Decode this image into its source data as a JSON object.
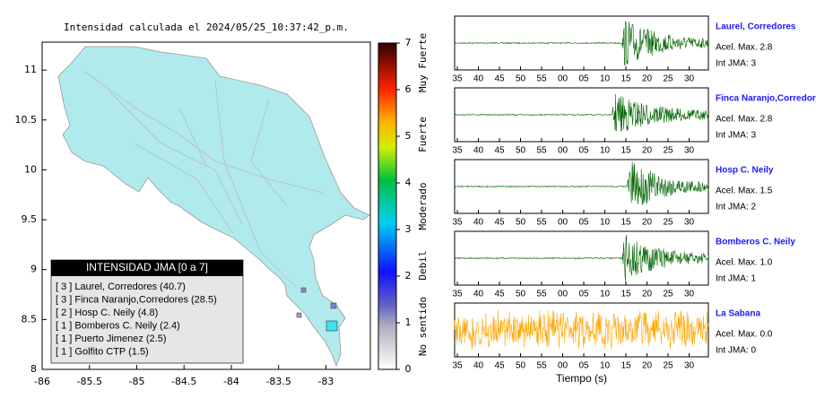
{
  "title": "Intensidad calculada el 2024/05/25_10:37:42_p.m.",
  "map": {
    "xlim": [
      -86,
      -82.53
    ],
    "ylim": [
      8,
      11.28
    ],
    "xticks": [
      -86,
      -85.5,
      -85,
      -84.5,
      -84,
      -83.5,
      -83
    ],
    "yticks": [
      8,
      8.5,
      9,
      9.5,
      10,
      10.5,
      11
    ]
  },
  "colorbar": {
    "lim": [
      0,
      7
    ],
    "ticks": [
      0,
      1,
      2,
      3,
      4,
      5,
      6,
      7
    ],
    "labels": [
      "No sentido",
      "Debil",
      "Moderado",
      "Fuerte",
      "Muy Fuerte"
    ]
  },
  "legend": {
    "title": "INTENSIDAD JMA [0 a 7]",
    "rows": [
      "[ 3 ]  Laurel, Corredores (40.7)",
      "[ 3 ]  Finca Naranjo,Corredores (28.5)",
      "[ 2 ]  Hosp C. Neily (4.8)",
      "[ 1 ]  Bomberos C. Neily (2.4)",
      "[ 1 ]  Puerto Jimenez (2.5)",
      "[ 1 ]  Golfito CTP (1.5)"
    ]
  },
  "seismograms": {
    "time_ticks": [
      "35",
      "40",
      "45",
      "50",
      "55",
      "00",
      "05",
      "10",
      "15",
      "20",
      "25",
      "30"
    ],
    "xlabel": "Tiempo (s)",
    "stations": [
      {
        "name": "Laurel, Corredores",
        "accel": "Acel. Max. 2.8",
        "jma": "Int JMA: 3"
      },
      {
        "name": "Finca Naranjo,Corredores",
        "accel": "Acel. Max. 2.8",
        "jma": "Int JMA: 3"
      },
      {
        "name": "Hosp C. Neily",
        "accel": "Acel. Max. 1.5",
        "jma": "Int JMA: 2"
      },
      {
        "name": "Bomberos C. Neily",
        "accel": "Acel. Max. 1.0",
        "jma": "Int JMA: 1"
      },
      {
        "name": "La Sabana",
        "accel": "Acel. Max. 0.0",
        "jma": "Int JMA: 0"
      }
    ]
  }
}
